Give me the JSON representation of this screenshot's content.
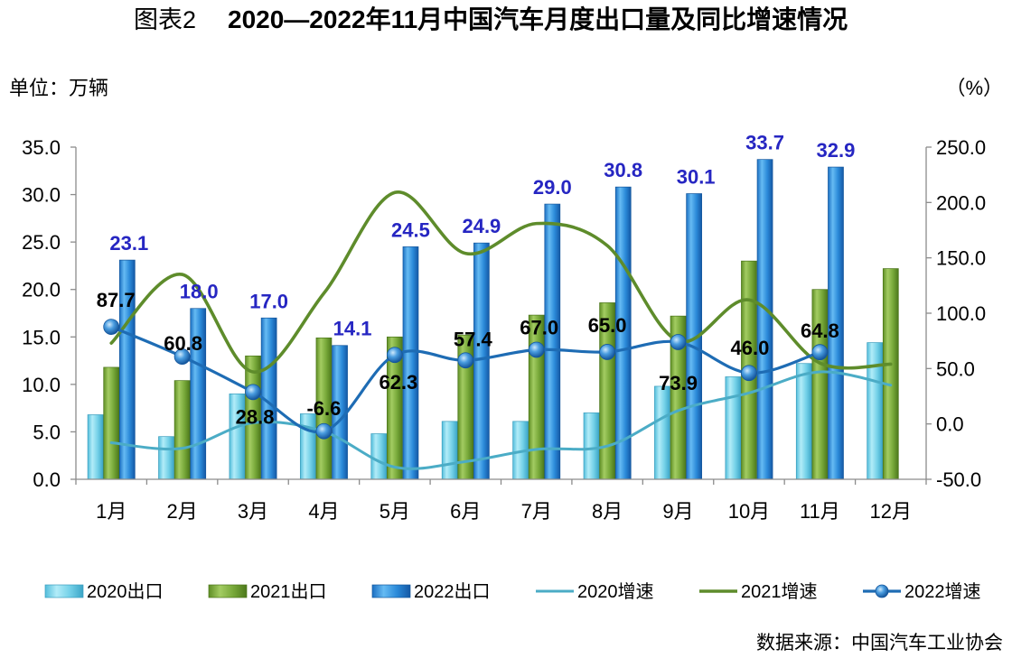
{
  "chart_data": {
    "type": "bar",
    "title_prefix": "图表2",
    "title": "2020—2022年11月中国汽车月度出口量及同比增速情况",
    "ylabel": "单位：万辆",
    "ylabel_right": "（%）",
    "categories": [
      "1月",
      "2月",
      "3月",
      "4月",
      "5月",
      "6月",
      "7月",
      "8月",
      "9月",
      "10月",
      "11月",
      "12月"
    ],
    "ylim": [
      0,
      35
    ],
    "yticks": [
      "0.0",
      "5.0",
      "10.0",
      "15.0",
      "20.0",
      "25.0",
      "30.0",
      "35.0"
    ],
    "ylim_right": [
      -50,
      250
    ],
    "yticks_right": [
      "-50.0",
      "0.0",
      "50.0",
      "100.0",
      "150.0",
      "200.0",
      "250.0"
    ],
    "series": [
      {
        "name": "2020出口",
        "type": "bar",
        "axis": "left",
        "color": "#5bc4df",
        "values": [
          6.8,
          4.5,
          9.0,
          6.9,
          4.8,
          6.1,
          6.1,
          7.0,
          9.8,
          10.8,
          12.2,
          14.4
        ]
      },
      {
        "name": "2021出口",
        "type": "bar",
        "axis": "left",
        "color": "#6b9a2e",
        "values": [
          11.8,
          10.4,
          13.0,
          14.9,
          15.0,
          15.2,
          17.3,
          18.6,
          17.2,
          23.0,
          20.0,
          22.2
        ]
      },
      {
        "name": "2022出口",
        "type": "bar",
        "axis": "left",
        "color": "#1f78c8",
        "label_color": "#2626c2",
        "data_labels": true,
        "values": [
          23.1,
          18.0,
          17.0,
          14.1,
          24.5,
          24.9,
          29.0,
          30.8,
          30.1,
          33.7,
          32.9,
          null
        ]
      },
      {
        "name": "2020增速",
        "type": "line",
        "axis": "right",
        "color": "#4bacc6",
        "values": [
          -17,
          -22,
          1,
          -7,
          -39,
          -34,
          -23,
          -20,
          12,
          28,
          47,
          35
        ]
      },
      {
        "name": "2021增速",
        "type": "line",
        "axis": "right",
        "color": "#5e8c2b",
        "values": [
          73,
          135,
          47,
          118,
          209,
          154,
          181,
          161,
          75,
          112,
          55,
          54
        ]
      },
      {
        "name": "2022增速",
        "type": "line",
        "axis": "right",
        "color": "#1e6cb4",
        "marker": "circle",
        "label_color": "#000000",
        "data_labels": true,
        "values": [
          87.7,
          60.8,
          28.8,
          -6.6,
          62.3,
          57.4,
          67.0,
          65.0,
          73.9,
          46.0,
          64.8,
          null
        ]
      }
    ],
    "legend": "bottom",
    "grid": false
  },
  "source": "数据来源：中国汽车工业协会"
}
